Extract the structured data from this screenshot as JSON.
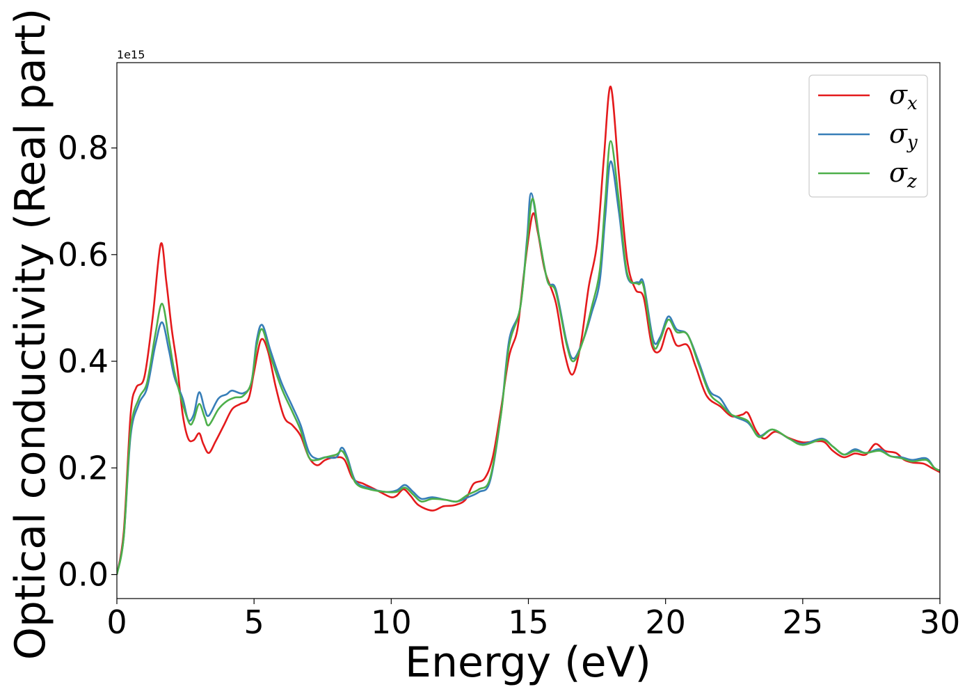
{
  "chart_data": {
    "type": "line",
    "xlabel": "Energy (eV)",
    "ylabel": "Optical conductivity (Real part)",
    "y_offset_text": "1e15",
    "xlim": [
      0,
      30
    ],
    "ylim": [
      -0.045,
      0.96
    ],
    "x_ticks": [
      0,
      5,
      10,
      15,
      20,
      25,
      30
    ],
    "x_tick_labels": [
      "0",
      "5",
      "10",
      "15",
      "20",
      "25",
      "30"
    ],
    "y_ticks": [
      0.0,
      0.2,
      0.4,
      0.6,
      0.8
    ],
    "y_tick_labels": [
      "0.0",
      "0.2",
      "0.4",
      "0.6",
      "0.8"
    ],
    "grid": false,
    "legend_position": "top-right",
    "series": [
      {
        "name": "σx",
        "symbol": "σ",
        "subscript": "x",
        "color": "#e41a1c",
        "points": [
          [
            0,
            0
          ],
          [
            0.25,
            0.08
          ],
          [
            0.5,
            0.3
          ],
          [
            0.7,
            0.35
          ],
          [
            1.0,
            0.37
          ],
          [
            1.3,
            0.48
          ],
          [
            1.6,
            0.62
          ],
          [
            1.8,
            0.55
          ],
          [
            2.0,
            0.46
          ],
          [
            2.2,
            0.39
          ],
          [
            2.4,
            0.3
          ],
          [
            2.6,
            0.255
          ],
          [
            2.8,
            0.252
          ],
          [
            3.0,
            0.265
          ],
          [
            3.15,
            0.245
          ],
          [
            3.35,
            0.228
          ],
          [
            3.6,
            0.25
          ],
          [
            3.9,
            0.28
          ],
          [
            4.2,
            0.31
          ],
          [
            4.5,
            0.32
          ],
          [
            4.8,
            0.33
          ],
          [
            5.0,
            0.38
          ],
          [
            5.25,
            0.44
          ],
          [
            5.5,
            0.42
          ],
          [
            5.8,
            0.35
          ],
          [
            6.1,
            0.295
          ],
          [
            6.4,
            0.28
          ],
          [
            6.7,
            0.26
          ],
          [
            7.0,
            0.22
          ],
          [
            7.3,
            0.205
          ],
          [
            7.6,
            0.215
          ],
          [
            8.0,
            0.22
          ],
          [
            8.3,
            0.215
          ],
          [
            8.6,
            0.18
          ],
          [
            9.0,
            0.17
          ],
          [
            9.4,
            0.16
          ],
          [
            9.7,
            0.152
          ],
          [
            10.0,
            0.145
          ],
          [
            10.2,
            0.148
          ],
          [
            10.45,
            0.16
          ],
          [
            10.7,
            0.148
          ],
          [
            11.0,
            0.13
          ],
          [
            11.5,
            0.12
          ],
          [
            11.9,
            0.128
          ],
          [
            12.3,
            0.13
          ],
          [
            12.7,
            0.14
          ],
          [
            13.0,
            0.17
          ],
          [
            13.4,
            0.18
          ],
          [
            13.7,
            0.22
          ],
          [
            14.0,
            0.31
          ],
          [
            14.3,
            0.41
          ],
          [
            14.6,
            0.46
          ],
          [
            14.85,
            0.57
          ],
          [
            15.15,
            0.675
          ],
          [
            15.35,
            0.64
          ],
          [
            15.6,
            0.57
          ],
          [
            16.0,
            0.51
          ],
          [
            16.3,
            0.42
          ],
          [
            16.6,
            0.375
          ],
          [
            16.9,
            0.43
          ],
          [
            17.2,
            0.54
          ],
          [
            17.5,
            0.62
          ],
          [
            17.75,
            0.78
          ],
          [
            18.0,
            0.915
          ],
          [
            18.3,
            0.75
          ],
          [
            18.6,
            0.59
          ],
          [
            18.9,
            0.535
          ],
          [
            19.2,
            0.52
          ],
          [
            19.5,
            0.43
          ],
          [
            19.8,
            0.42
          ],
          [
            20.1,
            0.462
          ],
          [
            20.4,
            0.43
          ],
          [
            20.8,
            0.43
          ],
          [
            21.1,
            0.39
          ],
          [
            21.5,
            0.335
          ],
          [
            22.0,
            0.315
          ],
          [
            22.4,
            0.297
          ],
          [
            22.8,
            0.3
          ],
          [
            23.0,
            0.303
          ],
          [
            23.3,
            0.27
          ],
          [
            23.6,
            0.255
          ],
          [
            24.0,
            0.268
          ],
          [
            24.5,
            0.256
          ],
          [
            25.0,
            0.248
          ],
          [
            25.5,
            0.25
          ],
          [
            25.8,
            0.248
          ],
          [
            26.1,
            0.232
          ],
          [
            26.5,
            0.22
          ],
          [
            26.9,
            0.227
          ],
          [
            27.3,
            0.225
          ],
          [
            27.65,
            0.245
          ],
          [
            28.0,
            0.232
          ],
          [
            28.4,
            0.228
          ],
          [
            28.7,
            0.215
          ],
          [
            29.0,
            0.21
          ],
          [
            29.4,
            0.208
          ],
          [
            29.7,
            0.2
          ],
          [
            30.0,
            0.192
          ]
        ]
      },
      {
        "name": "σy",
        "symbol": "σ",
        "subscript": "y",
        "color": "#377eb8",
        "points": [
          [
            0,
            0
          ],
          [
            0.25,
            0.07
          ],
          [
            0.5,
            0.26
          ],
          [
            0.8,
            0.32
          ],
          [
            1.1,
            0.35
          ],
          [
            1.4,
            0.43
          ],
          [
            1.65,
            0.473
          ],
          [
            1.9,
            0.42
          ],
          [
            2.1,
            0.37
          ],
          [
            2.4,
            0.33
          ],
          [
            2.6,
            0.29
          ],
          [
            2.8,
            0.3
          ],
          [
            3.0,
            0.342
          ],
          [
            3.2,
            0.31
          ],
          [
            3.35,
            0.298
          ],
          [
            3.7,
            0.33
          ],
          [
            4.0,
            0.338
          ],
          [
            4.2,
            0.345
          ],
          [
            4.6,
            0.34
          ],
          [
            4.9,
            0.36
          ],
          [
            5.1,
            0.44
          ],
          [
            5.3,
            0.468
          ],
          [
            5.6,
            0.42
          ],
          [
            6.0,
            0.36
          ],
          [
            6.4,
            0.315
          ],
          [
            6.7,
            0.28
          ],
          [
            7.0,
            0.23
          ],
          [
            7.3,
            0.217
          ],
          [
            7.6,
            0.22
          ],
          [
            8.0,
            0.22
          ],
          [
            8.2,
            0.238
          ],
          [
            8.4,
            0.22
          ],
          [
            8.7,
            0.175
          ],
          [
            9.2,
            0.162
          ],
          [
            9.8,
            0.155
          ],
          [
            10.2,
            0.158
          ],
          [
            10.5,
            0.168
          ],
          [
            10.8,
            0.155
          ],
          [
            11.1,
            0.142
          ],
          [
            11.5,
            0.145
          ],
          [
            12.0,
            0.14
          ],
          [
            12.4,
            0.137
          ],
          [
            12.8,
            0.145
          ],
          [
            13.2,
            0.155
          ],
          [
            13.6,
            0.175
          ],
          [
            14.0,
            0.3
          ],
          [
            14.3,
            0.44
          ],
          [
            14.7,
            0.5
          ],
          [
            14.95,
            0.63
          ],
          [
            15.1,
            0.715
          ],
          [
            15.4,
            0.63
          ],
          [
            15.7,
            0.55
          ],
          [
            16.0,
            0.535
          ],
          [
            16.4,
            0.435
          ],
          [
            16.65,
            0.405
          ],
          [
            17.0,
            0.44
          ],
          [
            17.3,
            0.49
          ],
          [
            17.6,
            0.55
          ],
          [
            17.8,
            0.67
          ],
          [
            18.0,
            0.775
          ],
          [
            18.3,
            0.68
          ],
          [
            18.6,
            0.56
          ],
          [
            19.0,
            0.548
          ],
          [
            19.2,
            0.546
          ],
          [
            19.55,
            0.44
          ],
          [
            19.8,
            0.445
          ],
          [
            20.1,
            0.484
          ],
          [
            20.4,
            0.46
          ],
          [
            20.8,
            0.45
          ],
          [
            21.2,
            0.4
          ],
          [
            21.6,
            0.345
          ],
          [
            22.0,
            0.33
          ],
          [
            22.4,
            0.3
          ],
          [
            23.0,
            0.285
          ],
          [
            23.4,
            0.26
          ],
          [
            23.9,
            0.272
          ],
          [
            24.5,
            0.255
          ],
          [
            25.0,
            0.245
          ],
          [
            25.7,
            0.255
          ],
          [
            26.1,
            0.24
          ],
          [
            26.5,
            0.225
          ],
          [
            26.9,
            0.235
          ],
          [
            27.3,
            0.228
          ],
          [
            27.8,
            0.235
          ],
          [
            28.2,
            0.222
          ],
          [
            28.6,
            0.22
          ],
          [
            29.0,
            0.215
          ],
          [
            29.5,
            0.218
          ],
          [
            29.8,
            0.2
          ],
          [
            30.0,
            0.195
          ]
        ]
      },
      {
        "name": "σz",
        "symbol": "σ",
        "subscript": "z",
        "color": "#4daf4a",
        "points": [
          [
            0,
            0
          ],
          [
            0.25,
            0.07
          ],
          [
            0.5,
            0.27
          ],
          [
            0.8,
            0.33
          ],
          [
            1.1,
            0.36
          ],
          [
            1.4,
            0.45
          ],
          [
            1.65,
            0.508
          ],
          [
            1.9,
            0.44
          ],
          [
            2.1,
            0.38
          ],
          [
            2.4,
            0.32
          ],
          [
            2.65,
            0.283
          ],
          [
            2.8,
            0.29
          ],
          [
            3.0,
            0.32
          ],
          [
            3.2,
            0.295
          ],
          [
            3.35,
            0.28
          ],
          [
            3.7,
            0.31
          ],
          [
            4.0,
            0.325
          ],
          [
            4.3,
            0.332
          ],
          [
            4.6,
            0.335
          ],
          [
            4.9,
            0.36
          ],
          [
            5.1,
            0.43
          ],
          [
            5.3,
            0.46
          ],
          [
            5.6,
            0.41
          ],
          [
            6.0,
            0.35
          ],
          [
            6.4,
            0.305
          ],
          [
            6.7,
            0.27
          ],
          [
            7.0,
            0.22
          ],
          [
            7.3,
            0.215
          ],
          [
            7.6,
            0.22
          ],
          [
            8.0,
            0.225
          ],
          [
            8.2,
            0.232
          ],
          [
            8.4,
            0.215
          ],
          [
            8.7,
            0.172
          ],
          [
            9.2,
            0.16
          ],
          [
            9.8,
            0.155
          ],
          [
            10.2,
            0.155
          ],
          [
            10.5,
            0.163
          ],
          [
            10.8,
            0.15
          ],
          [
            11.1,
            0.137
          ],
          [
            11.5,
            0.142
          ],
          [
            12.0,
            0.14
          ],
          [
            12.4,
            0.137
          ],
          [
            12.8,
            0.15
          ],
          [
            13.2,
            0.16
          ],
          [
            13.6,
            0.18
          ],
          [
            14.0,
            0.3
          ],
          [
            14.3,
            0.43
          ],
          [
            14.7,
            0.5
          ],
          [
            14.95,
            0.62
          ],
          [
            15.15,
            0.705
          ],
          [
            15.4,
            0.63
          ],
          [
            15.7,
            0.55
          ],
          [
            16.0,
            0.53
          ],
          [
            16.4,
            0.43
          ],
          [
            16.65,
            0.4
          ],
          [
            17.0,
            0.44
          ],
          [
            17.3,
            0.5
          ],
          [
            17.6,
            0.57
          ],
          [
            17.8,
            0.7
          ],
          [
            18.0,
            0.813
          ],
          [
            18.3,
            0.7
          ],
          [
            18.6,
            0.565
          ],
          [
            19.0,
            0.545
          ],
          [
            19.2,
            0.54
          ],
          [
            19.55,
            0.43
          ],
          [
            19.8,
            0.44
          ],
          [
            20.1,
            0.478
          ],
          [
            20.4,
            0.455
          ],
          [
            20.8,
            0.45
          ],
          [
            21.2,
            0.395
          ],
          [
            21.6,
            0.34
          ],
          [
            22.0,
            0.32
          ],
          [
            22.4,
            0.3
          ],
          [
            23.0,
            0.288
          ],
          [
            23.4,
            0.258
          ],
          [
            23.9,
            0.272
          ],
          [
            24.5,
            0.255
          ],
          [
            25.0,
            0.243
          ],
          [
            25.7,
            0.253
          ],
          [
            26.1,
            0.24
          ],
          [
            26.5,
            0.225
          ],
          [
            26.9,
            0.232
          ],
          [
            27.3,
            0.228
          ],
          [
            27.8,
            0.232
          ],
          [
            28.2,
            0.222
          ],
          [
            28.6,
            0.218
          ],
          [
            29.0,
            0.212
          ],
          [
            29.5,
            0.215
          ],
          [
            29.8,
            0.2
          ],
          [
            30.0,
            0.195
          ]
        ]
      }
    ]
  }
}
